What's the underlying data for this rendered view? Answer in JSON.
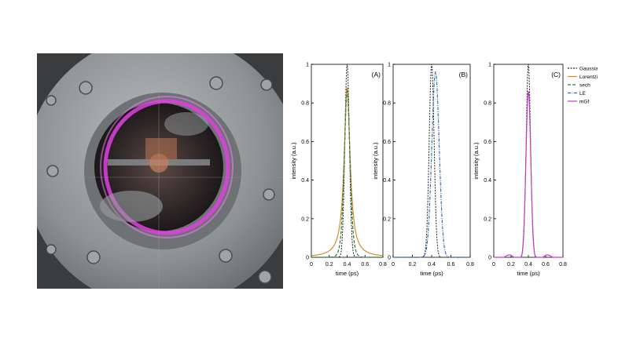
{
  "colors": {
    "Gaussian": "#222222",
    "Lorentzian": "#d68a2a",
    "sech": "#2a7a3a",
    "LE": "#3a6ab0",
    "mGf": "#c23cc2"
  },
  "photo": {
    "icon": "vacuum-chamber-viewport-photo"
  },
  "legend": {
    "items": [
      {
        "name": "Gaussian",
        "dash": "2,1.5"
      },
      {
        "name": "Lorentzian",
        "dash": ""
      },
      {
        "name": "sech",
        "dash": "4,2"
      },
      {
        "name": "LE",
        "dash": "4,1.5,1,1.5"
      },
      {
        "name": "mGf",
        "dash": ""
      }
    ]
  },
  "chart_data": [
    {
      "type": "line",
      "panel_label": "(A)",
      "xlabel": "time (ps)",
      "ylabel": "intensity (a.u.)",
      "xlim": [
        0,
        0.8
      ],
      "ylim": [
        0,
        1
      ],
      "xticks": [
        "0",
        "0.2",
        "0.4",
        "0.6",
        "0.8"
      ],
      "yticks": [
        "0",
        "0.2",
        "0.4",
        "0.6",
        "0.8",
        "1"
      ],
      "series": [
        {
          "name": "Gaussian",
          "model": "gaussian",
          "center": 0.4,
          "fwhm": 0.06,
          "peak": 1.0
        },
        {
          "name": "Lorentzian",
          "model": "lorentzian",
          "center": 0.4,
          "fwhm": 0.08,
          "peak": 0.88
        },
        {
          "name": "sech",
          "model": "sech2",
          "center": 0.4,
          "fwhm": 0.075,
          "peak": 0.86
        }
      ]
    },
    {
      "type": "line",
      "panel_label": "(B)",
      "xlabel": "time (ps)",
      "ylabel": "intensity (a.u.)",
      "xlim": [
        0,
        0.8
      ],
      "ylim": [
        0,
        1
      ],
      "xticks": [
        "0",
        "0.2",
        "0.4",
        "0.6",
        "0.8"
      ],
      "yticks": [
        "0",
        "0.2",
        "0.4",
        "0.6",
        "0.8",
        "1"
      ],
      "series": [
        {
          "name": "Gaussian",
          "model": "gaussian",
          "center": 0.4,
          "fwhm": 0.06,
          "peak": 1.0
        },
        {
          "name": "LE",
          "model": "gaussian",
          "center": 0.44,
          "fwhm": 0.09,
          "peak": 0.96
        }
      ]
    },
    {
      "type": "line",
      "panel_label": "(C)",
      "xlabel": "time (ps)",
      "ylabel": "intensity (a.u.)",
      "xlim": [
        0,
        0.8
      ],
      "ylim": [
        0,
        1
      ],
      "xticks": [
        "0",
        "0.2",
        "0.4",
        "0.6",
        "0.8"
      ],
      "yticks": [
        "0",
        "0.2",
        "0.4",
        "0.6",
        "0.8",
        "1"
      ],
      "series": [
        {
          "name": "Gaussian",
          "model": "gaussian",
          "center": 0.4,
          "fwhm": 0.06,
          "peak": 1.0
        },
        {
          "name": "mGf",
          "model": "mgf",
          "center": 0.4,
          "fwhm": 0.065,
          "peak": 0.84,
          "ripple": 0.02
        }
      ]
    }
  ]
}
